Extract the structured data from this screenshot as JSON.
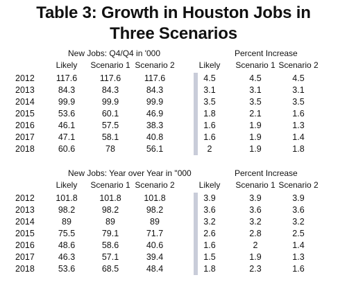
{
  "title_line1": "Table 3: Growth in Houston Jobs in",
  "title_line2": "Three Scenarios",
  "sections": [
    {
      "left_group_label": "New Jobs: Q4/Q4 in '000",
      "right_group_label": "Percent Increase",
      "left_cols": [
        "Likely",
        "Scenario 1",
        "Scenario 2"
      ],
      "right_cols": [
        "Likely",
        "Scenario 1",
        "Scenario 2"
      ],
      "rows": [
        {
          "year": "2012",
          "left": [
            "117.6",
            "117.6",
            "117.6"
          ],
          "right": [
            "4.5",
            "4.5",
            "4.5"
          ]
        },
        {
          "year": "2013",
          "left": [
            "84.3",
            "84.3",
            "84.3"
          ],
          "right": [
            "3.1",
            "3.1",
            "3.1"
          ]
        },
        {
          "year": "2014",
          "left": [
            "99.9",
            "99.9",
            "99.9"
          ],
          "right": [
            "3.5",
            "3.5",
            "3.5"
          ]
        },
        {
          "year": "2015",
          "left": [
            "53.6",
            "60.1",
            "46.9"
          ],
          "right": [
            "1.8",
            "2.1",
            "1.6"
          ]
        },
        {
          "year": "2016",
          "left": [
            "46.1",
            "57.5",
            "38.3"
          ],
          "right": [
            "1.6",
            "1.9",
            "1.3"
          ]
        },
        {
          "year": "2017",
          "left": [
            "47.1",
            "58.1",
            "40.8"
          ],
          "right": [
            "1.6",
            "1.9",
            "1.4"
          ]
        },
        {
          "year": "2018",
          "left": [
            "60.6",
            "78",
            "56.1"
          ],
          "right": [
            "2",
            "1.9",
            "1.8"
          ]
        }
      ]
    },
    {
      "left_group_label": "New Jobs: Year over Year in \"000",
      "right_group_label": "Percent Increase",
      "left_cols": [
        "Likely",
        "Scenario 1",
        "Scenario 2"
      ],
      "right_cols": [
        "Likely",
        "Scenario 1",
        "Scenario 2"
      ],
      "rows": [
        {
          "year": "2012",
          "left": [
            "101.8",
            "101.8",
            "101.8"
          ],
          "right": [
            "3.9",
            "3.9",
            "3.9"
          ]
        },
        {
          "year": "2013",
          "left": [
            "98.2",
            "98.2",
            "98.2"
          ],
          "right": [
            "3.6",
            "3.6",
            "3.6"
          ]
        },
        {
          "year": "2014",
          "left": [
            "89",
            "89",
            "89"
          ],
          "right": [
            "3.2",
            "3.2",
            "3.2"
          ]
        },
        {
          "year": "2015",
          "left": [
            "75.5",
            "79.1",
            "71.7"
          ],
          "right": [
            "2.6",
            "2.8",
            "2.5"
          ]
        },
        {
          "year": "2016",
          "left": [
            "48.6",
            "58.6",
            "40.6"
          ],
          "right": [
            "1.6",
            "2",
            "1.4"
          ]
        },
        {
          "year": "2017",
          "left": [
            "46.3",
            "57.1",
            "39.4"
          ],
          "right": [
            "1.5",
            "1.9",
            "1.3"
          ]
        },
        {
          "year": "2018",
          "left": [
            "53.6",
            "68.5",
            "48.4"
          ],
          "right": [
            "1.8",
            "2.3",
            "1.6"
          ]
        }
      ]
    }
  ]
}
